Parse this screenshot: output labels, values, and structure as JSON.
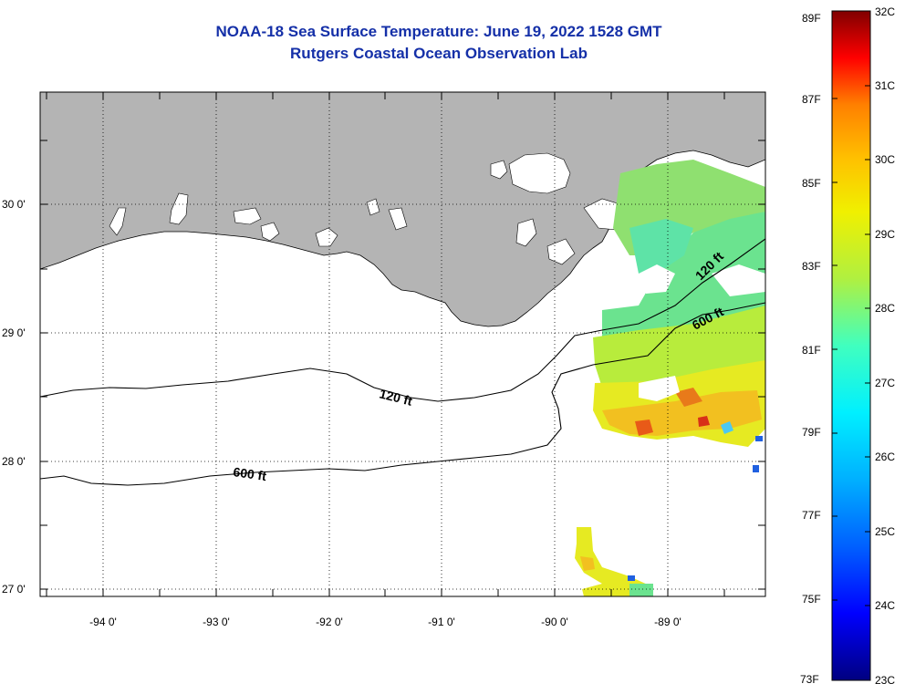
{
  "header": {
    "title": "NOAA-18 Sea Surface Temperature:  June 19, 2022 1528 GMT",
    "subtitle": "Rutgers Coastal Ocean Observation Lab"
  },
  "map": {
    "lon_labels": [
      "-94 0'",
      "-93 0'",
      "-92 0'",
      "-91 0'",
      "-90 0'",
      "-89 0'"
    ],
    "lat_labels": [
      "30 0'",
      "29 0'",
      "28 0'",
      "27 0'"
    ],
    "contour_labels": [
      "120 ft",
      "120 ft",
      "600 ft",
      "600 ft"
    ]
  },
  "colorbar": {
    "fahrenheit": [
      "89F",
      "87F",
      "85F",
      "83F",
      "81F",
      "79F",
      "77F",
      "75F",
      "73F"
    ],
    "celsius": [
      "32C",
      "31C",
      "30C",
      "29C",
      "28C",
      "27C",
      "26C",
      "25C",
      "24C",
      "23C"
    ]
  },
  "colors": {
    "title": "#1530a8",
    "land": "#b4b4b4",
    "ocean": "#ffffff",
    "colormap": [
      "#000080",
      "#0000ff",
      "#0080ff",
      "#00e8ff",
      "#40ffbf",
      "#b0f040",
      "#f0f000",
      "#ffc000",
      "#ff8000",
      "#ff0000",
      "#800000"
    ]
  }
}
